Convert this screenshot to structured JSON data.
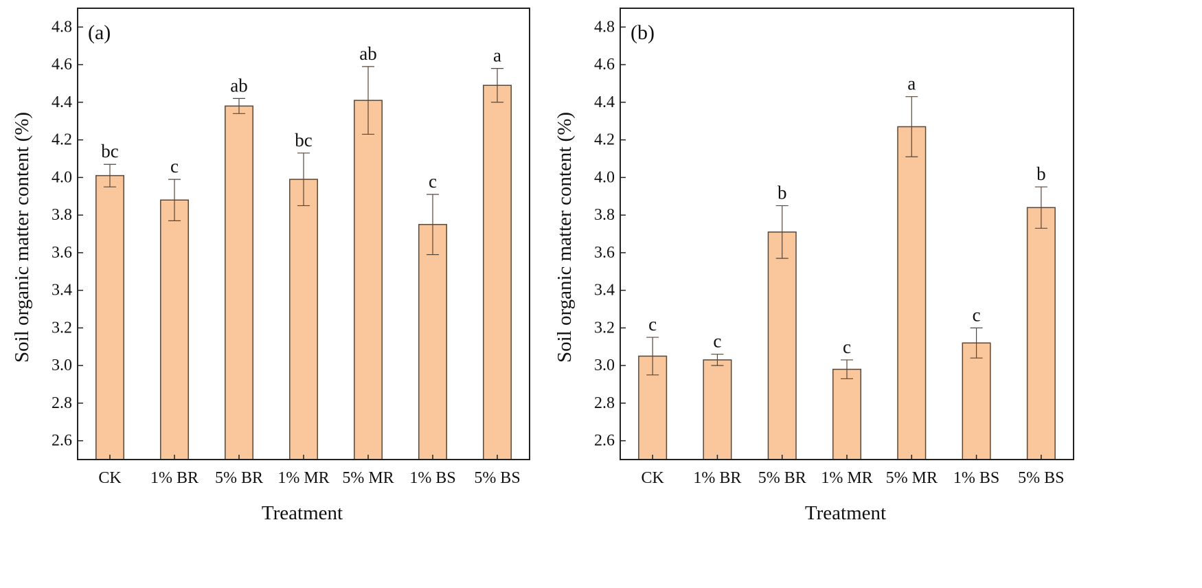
{
  "colors": {
    "bar_fill": "#f9c79b",
    "bar_stroke": "#5a4636",
    "axis": "#222222"
  },
  "chart_data": [
    {
      "type": "bar",
      "panel_label": "(a)",
      "xlabel": "Treatment",
      "ylabel": "Soil organic matter content (%)",
      "ylim": [
        2.5,
        4.9
      ],
      "yticks": [
        "2.6",
        "2.8",
        "3.0",
        "3.2",
        "3.4",
        "3.6",
        "3.8",
        "4.0",
        "4.2",
        "4.4",
        "4.6",
        "4.8"
      ],
      "categories": [
        "CK",
        "1% BR",
        "5% BR",
        "1% MR",
        "5% MR",
        "1% BS",
        "5% BS"
      ],
      "values": [
        4.01,
        3.88,
        4.38,
        3.99,
        4.41,
        3.75,
        4.49
      ],
      "errors": [
        0.06,
        0.11,
        0.04,
        0.14,
        0.18,
        0.16,
        0.09
      ],
      "significance": [
        "bc",
        "c",
        "ab",
        "bc",
        "ab",
        "c",
        "a"
      ]
    },
    {
      "type": "bar",
      "panel_label": "(b)",
      "xlabel": "Treatment",
      "ylabel": "Soil organic matter content (%)",
      "ylim": [
        2.5,
        4.9
      ],
      "yticks": [
        "2.6",
        "2.8",
        "3.0",
        "3.2",
        "3.4",
        "3.6",
        "3.8",
        "4.0",
        "4.2",
        "4.4",
        "4.6",
        "4.8"
      ],
      "categories": [
        "CK",
        "1% BR",
        "5% BR",
        "1% MR",
        "5% MR",
        "1% BS",
        "5% BS"
      ],
      "values": [
        3.05,
        3.03,
        3.71,
        2.98,
        4.27,
        3.12,
        3.84
      ],
      "errors": [
        0.1,
        0.03,
        0.14,
        0.05,
        0.16,
        0.08,
        0.11
      ],
      "significance": [
        "c",
        "c",
        "b",
        "c",
        "a",
        "c",
        "b"
      ]
    }
  ]
}
